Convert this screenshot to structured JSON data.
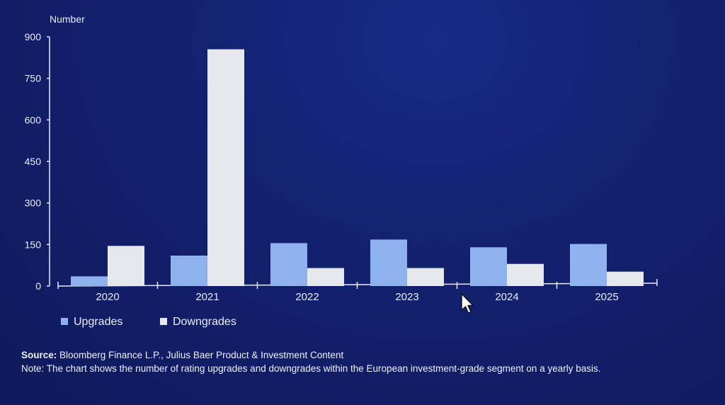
{
  "chart_data": {
    "type": "bar",
    "ylabel": "Number",
    "ylim": [
      0,
      900
    ],
    "yticks": [
      0,
      150,
      300,
      450,
      600,
      750,
      900
    ],
    "categories": [
      "2020",
      "2021",
      "2022",
      "2023",
      "2024",
      "2025"
    ],
    "series": [
      {
        "name": "Upgrades",
        "color": "#8fb2ef",
        "values": [
          35,
          110,
          155,
          168,
          140,
          152
        ]
      },
      {
        "name": "Downgrades",
        "color": "#e6e8ee",
        "values": [
          145,
          855,
          65,
          65,
          80,
          52
        ]
      }
    ],
    "legend_position": "bottom-left",
    "grid": false
  },
  "footer": {
    "source_label": "Source:",
    "source_text": " Bloomberg Finance L.P., Julius Baer Product & Investment Content",
    "note_text": "Note: The chart shows the number of rating upgrades and downgrades within the European investment-grade segment on a yearly basis."
  },
  "cursor_icon": "mouse-pointer-icon"
}
